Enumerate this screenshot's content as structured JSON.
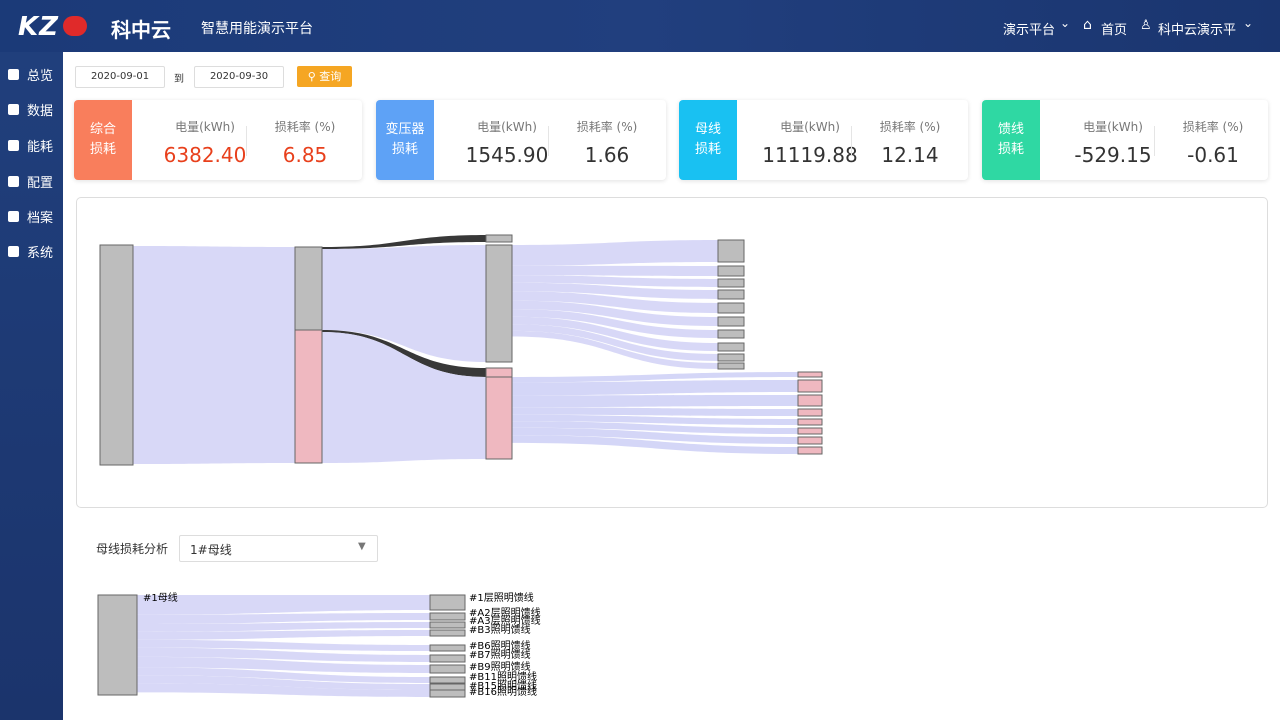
{
  "header": {
    "logo": "KZ",
    "logo_cn": "科中云",
    "title": "智慧用能演示平台",
    "nav": [
      "演示平台",
      "首页",
      "科中云演示平"
    ]
  },
  "sidebar": [
    "总览",
    "数据",
    "能耗",
    "配置",
    "档案",
    "系统"
  ],
  "filter": {
    "start": "2020-09-01",
    "to": "到",
    "end": "2020-09-30",
    "query": "查询"
  },
  "cards": [
    {
      "label": [
        "综合",
        "损耗"
      ],
      "energy_label": "电量(kWh)",
      "energy": "6382.40",
      "rate_label": "损耗率 (%)",
      "rate": "6.85"
    },
    {
      "label": [
        "变压器",
        "损耗"
      ],
      "energy_label": "电量(kWh)",
      "energy": "1545.90",
      "rate_label": "损耗率 (%)",
      "rate": "1.66"
    },
    {
      "label": [
        "母线",
        "损耗"
      ],
      "energy_label": "电量(kWh)",
      "energy": "11119.88",
      "rate_label": "损耗率 (%)",
      "rate": "12.14"
    },
    {
      "label": [
        "馈线",
        "损耗"
      ],
      "energy_label": "电量(kWh)",
      "energy": "-529.15",
      "rate_label": "损耗率 (%)",
      "rate": "-0.61"
    }
  ],
  "bus_analysis": {
    "label": "母线损耗分析",
    "select": "1#母线"
  },
  "bus_sankey": {
    "source": "#1母线",
    "targets": [
      "#1层照明馈线",
      "#A2层照明馈线",
      "#A3层照明馈线",
      "#B3照明馈线",
      "#B6照明馈线",
      "#B7照明馈线",
      "#B9照明馈线",
      "#B11照明馈线",
      "#B15照明馈线",
      "#B16照明馈线"
    ]
  }
}
